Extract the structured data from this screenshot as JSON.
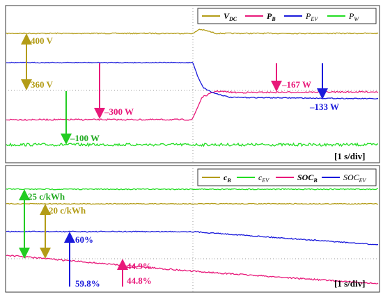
{
  "top_panel": {
    "legend": [
      {
        "symbol": "V",
        "subscript": "DC"
      },
      {
        "symbol": "P",
        "subscript": "B"
      },
      {
        "symbol": "P",
        "subscript": "EV"
      },
      {
        "symbol": "P",
        "subscript": "W"
      }
    ],
    "annotations": [
      "400 V",
      "360 V",
      "–300 W",
      "–100 W",
      "–167 W",
      "–133 W"
    ],
    "time_scale": "[1 s/div]"
  },
  "bottom_panel": {
    "legend": [
      {
        "symbol": "c",
        "subscript": "B"
      },
      {
        "symbol": "c",
        "subscript": "EV"
      },
      {
        "symbol": "SOC",
        "subscript": "B"
      },
      {
        "symbol": "SOC",
        "subscript": "EV"
      }
    ],
    "annotations": [
      "25 c/kWh",
      "20 c/kWh",
      "60%",
      "59.8%",
      "44.9%",
      "44.8%"
    ],
    "time_scale": "[1 s/div]"
  }
}
